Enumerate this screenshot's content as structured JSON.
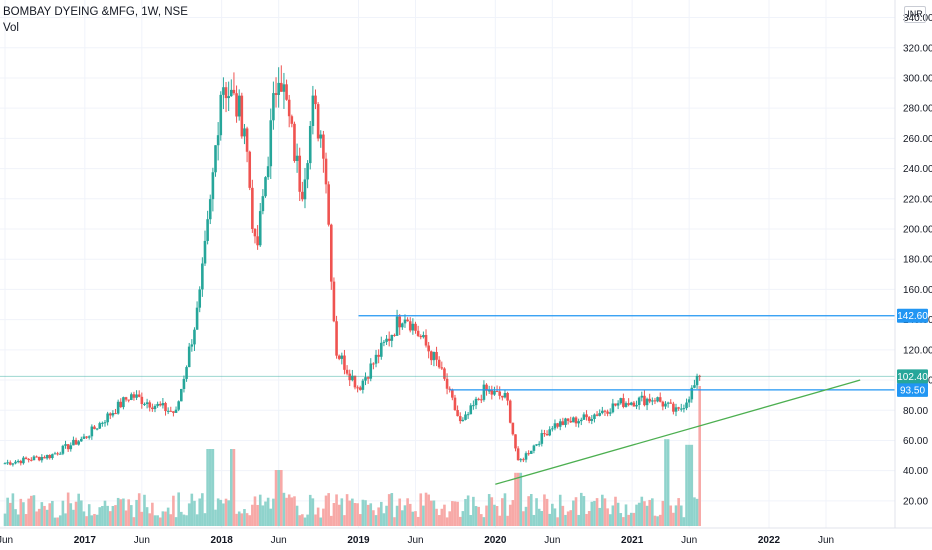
{
  "header": {
    "symbol": "BOMBAY DYEING &MFG, 1W, NSE",
    "volume_label": "Vol",
    "currency": "INR"
  },
  "colors": {
    "up": "#26a69a",
    "down": "#ef5350",
    "vol_up": "#8fd3cc",
    "vol_down": "#f7a9a7",
    "resistance_line": "#2196f3",
    "trendline": "#4caf50",
    "last_price_tag": "#26a69a",
    "level_tag": "#2196f3",
    "grid": "#f0f3fa"
  },
  "chart_data": {
    "type": "candlestick",
    "title": "BOMBAY DYEING &MFG, 1W, NSE",
    "ylim": [
      10,
      345
    ],
    "y_ticks": [
      20,
      40,
      60,
      80,
      100,
      120,
      140,
      160,
      180,
      200,
      220,
      240,
      260,
      280,
      300,
      320,
      340
    ],
    "x_tick_labels": [
      "Jun",
      "2017",
      "Jun",
      "2018",
      "Jun",
      "2019",
      "Jun",
      "2020",
      "Jun",
      "2021",
      "Jun",
      "2022",
      "Jun"
    ],
    "x_tick_dates": [
      "2016-06",
      "2017-01",
      "2017-06",
      "2018-01",
      "2018-06",
      "2019-01",
      "2019-06",
      "2020-01",
      "2020-06",
      "2021-01",
      "2021-06",
      "2022-01",
      "2022-06"
    ],
    "key_points": [
      {
        "date": "2016-06",
        "close": 45
      },
      {
        "date": "2016-10",
        "close": 50
      },
      {
        "date": "2017-01",
        "close": 62
      },
      {
        "date": "2017-05",
        "close": 90
      },
      {
        "date": "2017-09",
        "close": 78
      },
      {
        "date": "2017-11",
        "close": 150
      },
      {
        "date": "2017-12",
        "close": 215
      },
      {
        "date": "2018-01",
        "close": 300
      },
      {
        "date": "2018-03",
        "close": 270
      },
      {
        "date": "2018-04",
        "close": 180
      },
      {
        "date": "2018-06",
        "close": 310
      },
      {
        "date": "2018-08",
        "close": 225
      },
      {
        "date": "2018-09",
        "close": 280
      },
      {
        "date": "2018-10",
        "close": 255
      },
      {
        "date": "2018-11",
        "close": 120
      },
      {
        "date": "2019-01",
        "close": 95
      },
      {
        "date": "2019-05",
        "close": 145
      },
      {
        "date": "2019-08",
        "close": 110
      },
      {
        "date": "2019-10",
        "close": 70
      },
      {
        "date": "2019-12",
        "close": 93
      },
      {
        "date": "2020-02",
        "close": 88
      },
      {
        "date": "2020-03",
        "close": 45
      },
      {
        "date": "2020-06",
        "close": 70
      },
      {
        "date": "2020-09",
        "close": 75
      },
      {
        "date": "2020-12",
        "close": 85
      },
      {
        "date": "2021-03",
        "close": 88
      },
      {
        "date": "2021-05",
        "close": 78
      },
      {
        "date": "2021-07",
        "close": 102.4
      }
    ],
    "volume_spikes": [
      {
        "date": "2017-12",
        "volume": 0.55
      },
      {
        "date": "2018-02",
        "volume": 0.55
      },
      {
        "date": "2018-06",
        "volume": 0.4
      },
      {
        "date": "2020-03",
        "volume": 0.38
      },
      {
        "date": "2021-04",
        "volume": 0.62
      },
      {
        "date": "2021-06",
        "volume": 0.58
      },
      {
        "date": "2021-07",
        "volume": 1.0
      }
    ],
    "levels": [
      {
        "value": 142.6,
        "label": "142.60",
        "from": "2019-01"
      },
      {
        "value": 93.5,
        "label": "93.50",
        "from": "2019-09"
      }
    ],
    "last_price": {
      "value": 102.4,
      "label": "102.40"
    },
    "trendline": [
      {
        "date": "2020-01",
        "value": 31
      },
      {
        "date": "2022-09",
        "value": 100
      }
    ]
  }
}
